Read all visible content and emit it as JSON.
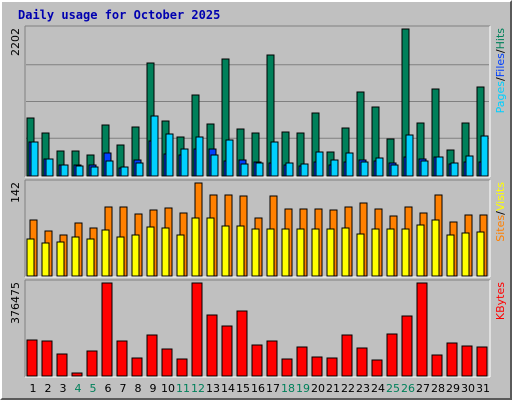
{
  "chart_data": {
    "type": "bar",
    "title": "Daily usage for October 2025",
    "days": [
      "1",
      "2",
      "3",
      "4",
      "5",
      "6",
      "7",
      "8",
      "9",
      "10",
      "11",
      "12",
      "13",
      "14",
      "15",
      "16",
      "17",
      "18",
      "19",
      "20",
      "21",
      "22",
      "23",
      "24",
      "25",
      "26",
      "27",
      "28",
      "29",
      "30",
      "31"
    ],
    "weekend_days": [
      "4",
      "5",
      "11",
      "12",
      "18",
      "19",
      "25",
      "26"
    ],
    "colors": {
      "hits": "#00805a",
      "files": "#0040ff",
      "pages": "#00d0ff",
      "visits": "#ffff00",
      "sites": "#ff8000",
      "kbytes": "#ff0000",
      "weekday_label": "#000000",
      "weekend_label": "#00805a"
    },
    "panels": [
      {
        "id": "hits-files-pages",
        "max_label": "2202",
        "ymax": 2202,
        "legend": [
          {
            "text": "Pages",
            "color": "#00d0ff"
          },
          {
            "text": "/",
            "color": "#000000"
          },
          {
            "text": "Files",
            "color": "#0040ff"
          },
          {
            "text": "/",
            "color": "#000000"
          },
          {
            "text": "Hits",
            "color": "#00805a"
          }
        ],
        "series": [
          {
            "name": "Hits",
            "color": "#00805a",
            "values": [
              870,
              650,
              380,
              370,
              320,
              770,
              460,
              740,
              1700,
              820,
              580,
              1210,
              780,
              1760,
              700,
              640,
              1810,
              660,
              640,
              950,
              360,
              720,
              1260,
              1030,
              550,
              2202,
              790,
              1310,
              390,
              800,
              1330
            ]
          },
          {
            "name": "Files",
            "color": "#0040ff",
            "values": [
              510,
              250,
              160,
              170,
              160,
              350,
              120,
              240,
              530,
              330,
              310,
              400,
              400,
              220,
              240,
              210,
              190,
              160,
              150,
              210,
              170,
              210,
              240,
              220,
              190,
              280,
              260,
              290,
              180,
              210,
              210
            ]
          },
          {
            "name": "Pages",
            "color": "#00d0ff",
            "values": [
              510,
              260,
              160,
              150,
              140,
              220,
              140,
              200,
              900,
              630,
              410,
              580,
              310,
              540,
              180,
              200,
              510,
              190,
              180,
              360,
              240,
              340,
              210,
              270,
              160,
              620,
              230,
              290,
              190,
              300,
              600
            ]
          }
        ]
      },
      {
        "id": "visits-sites",
        "max_label": "142",
        "ymax": 142,
        "legend": [
          {
            "text": "Sites",
            "color": "#ff8000"
          },
          {
            "text": "/",
            "color": "#000000"
          },
          {
            "text": "Visits",
            "color": "#ffff00"
          }
        ],
        "series": [
          {
            "name": "Sites",
            "color": "#ff8000",
            "values": [
              85,
              68,
              63,
              81,
              74,
              106,
              106,
              94,
              101,
              104,
              96,
              142,
              123,
              123,
              122,
              88,
              122,
              103,
              102,
              102,
              101,
              106,
              111,
              103,
              92,
              105,
              96,
              123,
              82,
              93,
              93
            ]
          },
          {
            "name": "Visits",
            "color": "#ffff00",
            "values": [
              56,
              51,
              52,
              59,
              57,
              70,
              59,
              63,
              75,
              74,
              63,
              88,
              88,
              76,
              76,
              72,
              72,
              71,
              72,
              72,
              71,
              74,
              64,
              71,
              72,
              71,
              78,
              85,
              62,
              65,
              67
            ]
          }
        ]
      },
      {
        "id": "kbytes",
        "max_label": "376475",
        "ymax": 376475,
        "legend": [
          {
            "text": "KBytes",
            "color": "#ff0000"
          }
        ],
        "series": [
          {
            "name": "KBytes",
            "color": "#ff0000",
            "values": [
              145000,
              140000,
              91000,
              12000,
              103000,
              376475,
              140000,
              73000,
              164000,
              109000,
              67000,
              376475,
              248000,
              201000,
              262000,
              125000,
              143000,
              70000,
              117000,
              78000,
              71000,
              164000,
              115000,
              66000,
              170000,
              242000,
              376475,
              84000,
              135000,
              123000,
              117000
            ]
          }
        ]
      }
    ]
  }
}
